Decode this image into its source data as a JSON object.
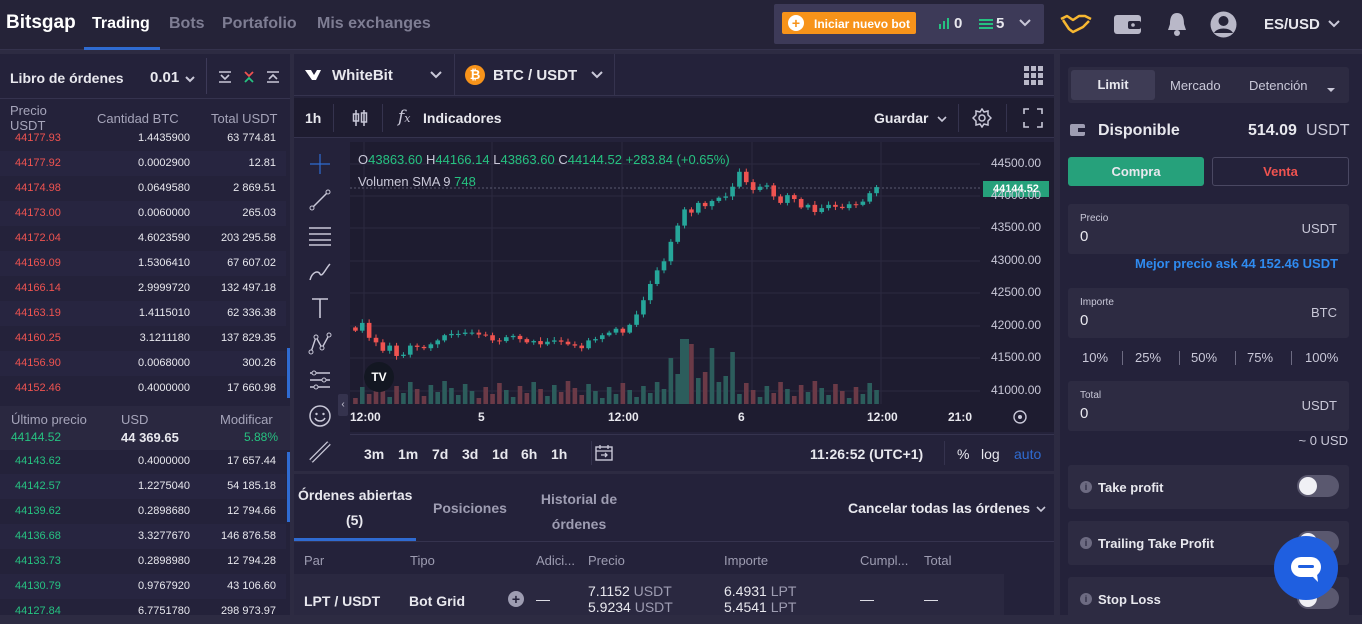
{
  "topbar": {
    "brand": "Bitsgap",
    "nav": [
      "Trading",
      "Bots",
      "Portafolio",
      "Mis exchanges"
    ],
    "start_bot": "Iniciar nuevo bot",
    "bots_count": "0",
    "grid_count": "5",
    "currency": "ES/USD"
  },
  "orderbook": {
    "title": "Libro de órdenes",
    "step": "0.01",
    "headers": {
      "price": "Precio USDT",
      "amount": "Cantidad BTC",
      "total": "Total USDT"
    },
    "asks": [
      [
        "44177.93",
        "1.4435900",
        "63 774.81"
      ],
      [
        "44177.92",
        "0.0002900",
        "12.81"
      ],
      [
        "44174.98",
        "0.0649580",
        "2 869.51"
      ],
      [
        "44173.00",
        "0.0060000",
        "265.03"
      ],
      [
        "44172.04",
        "4.6023590",
        "203 295.58"
      ],
      [
        "44169.09",
        "1.5306410",
        "67 607.02"
      ],
      [
        "44166.14",
        "2.9999720",
        "132 497.18"
      ],
      [
        "44163.19",
        "1.4115010",
        "62 336.38"
      ],
      [
        "44160.25",
        "3.1211180",
        "137 829.35"
      ],
      [
        "44156.90",
        "0.0068000",
        "300.26"
      ],
      [
        "44152.46",
        "0.4000000",
        "17 660.98"
      ]
    ],
    "last_label": "Último precio",
    "usd_label": "USD",
    "change_label": "Modificar",
    "last_price": "44144.52",
    "usd_value": "44 369.65",
    "change": "5.88%",
    "bids": [
      [
        "44143.62",
        "0.4000000",
        "17 657.44"
      ],
      [
        "44142.57",
        "1.2275040",
        "54 185.18"
      ],
      [
        "44139.62",
        "0.2898680",
        "12 794.66"
      ],
      [
        "44136.68",
        "3.3277670",
        "146 876.58"
      ],
      [
        "44133.73",
        "0.2898980",
        "12 794.28"
      ],
      [
        "44130.79",
        "0.9767920",
        "43 106.60"
      ],
      [
        "44127.84",
        "6.7751780",
        "298 973.97"
      ]
    ]
  },
  "chart": {
    "exchange": "WhiteBit",
    "pair": "BTC / USDT",
    "interval": "1h",
    "indicators": "Indicadores",
    "save": "Guardar",
    "ohlc": {
      "o_label": "O",
      "o": "43863.60",
      "h_label": "H",
      "h": "44166.14",
      "l_label": "L",
      "l": "43863.60",
      "c_label": "C",
      "c": "44144.52",
      "chg": "+283.84 (+0.65%)"
    },
    "volume_label": "Volumen SMA 9",
    "volume_value": "748",
    "price_tag": "44144.52",
    "y_ticks": [
      "44500.00",
      "44000.00",
      "43500.00",
      "43000.00",
      "42500.00",
      "42000.00",
      "41500.00",
      "41000.00"
    ],
    "x_ticks": [
      "12:00",
      "5",
      "12:00",
      "6",
      "12:00",
      "21:0"
    ],
    "ranges": [
      "3m",
      "1m",
      "7d",
      "3d",
      "1d",
      "6h",
      "1h"
    ],
    "clock": "11:26:52 (UTC+1)",
    "pct": "%",
    "log": "log",
    "auto": "auto"
  },
  "orders": {
    "tabs": [
      "Órdenes abiertas",
      "(5)",
      "Posiciones",
      "Historial de",
      "órdenes"
    ],
    "cancel_all": "Cancelar todas las órdenes",
    "headers": [
      "Par",
      "Tipo",
      "Adici...",
      "Precio",
      "Importe",
      "Cumpl...",
      "Total"
    ],
    "row": {
      "pair": "LPT / USDT",
      "type": "Bot Grid",
      "add": "—",
      "price1": "7.1152",
      "price2": "5.9234",
      "cur": "USDT",
      "amt1": "6.4931",
      "amt2": "5.4541",
      "amtcur": "LPT",
      "fill": "—",
      "total": "—"
    }
  },
  "trade": {
    "tabs": [
      "Limit",
      "Mercado",
      "Detención"
    ],
    "available_label": "Disponible",
    "available": "514.09",
    "available_cur": "USDT",
    "buy": "Compra",
    "sell": "Venta",
    "price_label": "Precio",
    "price_value": "0",
    "price_cur": "USDT",
    "best_ask": "Mejor precio ask 44 152.46 USDT",
    "amount_label": "Importe",
    "amount_value": "0",
    "amount_cur": "BTC",
    "percents": [
      "10%",
      "25%",
      "50%",
      "75%",
      "100%"
    ],
    "total_label": "Total",
    "total_value": "0",
    "total_cur": "USDT",
    "approx": "~ 0 USD",
    "take_profit": "Take profit",
    "trailing": "Trailing Take Profit",
    "stop_loss": "Stop Loss"
  },
  "colors": {
    "accent": "#2f6bd1",
    "buy": "#26a17b",
    "sell": "#ef5350",
    "orange": "#f7931a"
  }
}
